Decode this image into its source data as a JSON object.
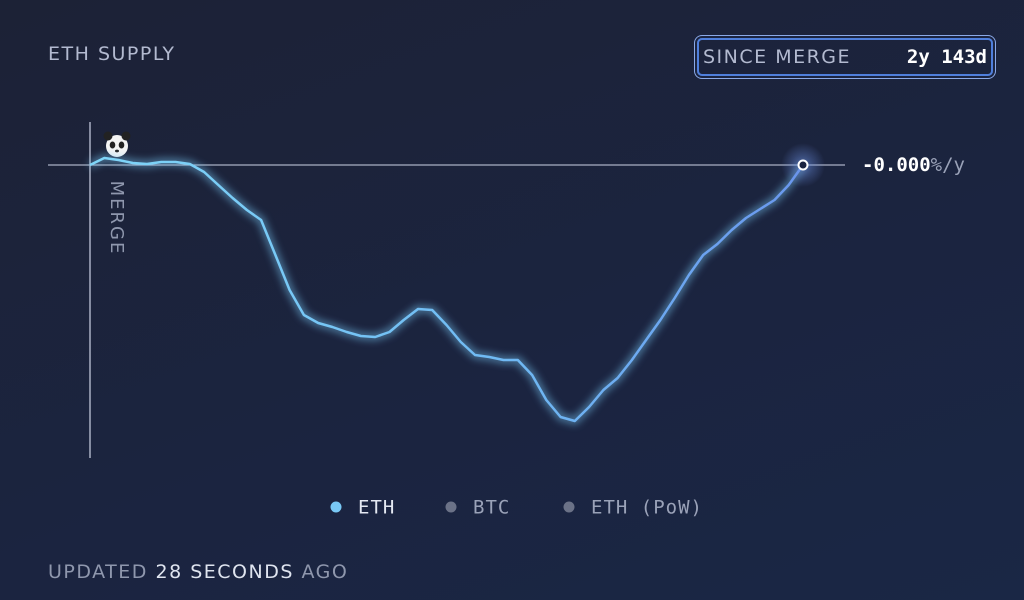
{
  "header": {
    "title": "ETH SUPPLY",
    "period_label": "SINCE MERGE",
    "period_value": "2y 143d"
  },
  "chart_data": {
    "type": "line",
    "marker_label": "MERGE",
    "end_label": {
      "value": "-0.000",
      "unit": "%/y"
    },
    "ylim": [
      -3,
      0.4
    ],
    "series": [
      {
        "name": "ETH",
        "color": "#79c8f5",
        "values": [
          0,
          0.07,
          0.05,
          0.02,
          0.01,
          0.03,
          0.03,
          0.01,
          -0.07,
          -0.2,
          -0.33,
          -0.45,
          -0.55,
          -0.9,
          -1.25,
          -1.5,
          -1.58,
          -1.62,
          -1.67,
          -1.71,
          -1.72,
          -1.67,
          -1.55,
          -1.44,
          -1.45,
          -1.6,
          -1.77,
          -1.9,
          -1.92,
          -1.95,
          -1.95,
          -2.1,
          -2.35,
          -2.52,
          -2.56,
          -2.42,
          -2.25,
          -2.13,
          -1.95,
          -1.75,
          -1.55,
          -1.33,
          -1.1,
          -0.9,
          -0.79,
          -0.65,
          -0.53,
          -0.44,
          -0.35,
          -0.2,
          0
        ]
      },
      {
        "name": "BTC",
        "color": "#6b7287",
        "values": []
      },
      {
        "name": "ETH (PoW)",
        "color": "#6b7287",
        "values": []
      }
    ]
  },
  "footer": {
    "prefix": "UPDATED",
    "amount": "28",
    "unit": "SECONDS",
    "suffix": "AGO"
  }
}
